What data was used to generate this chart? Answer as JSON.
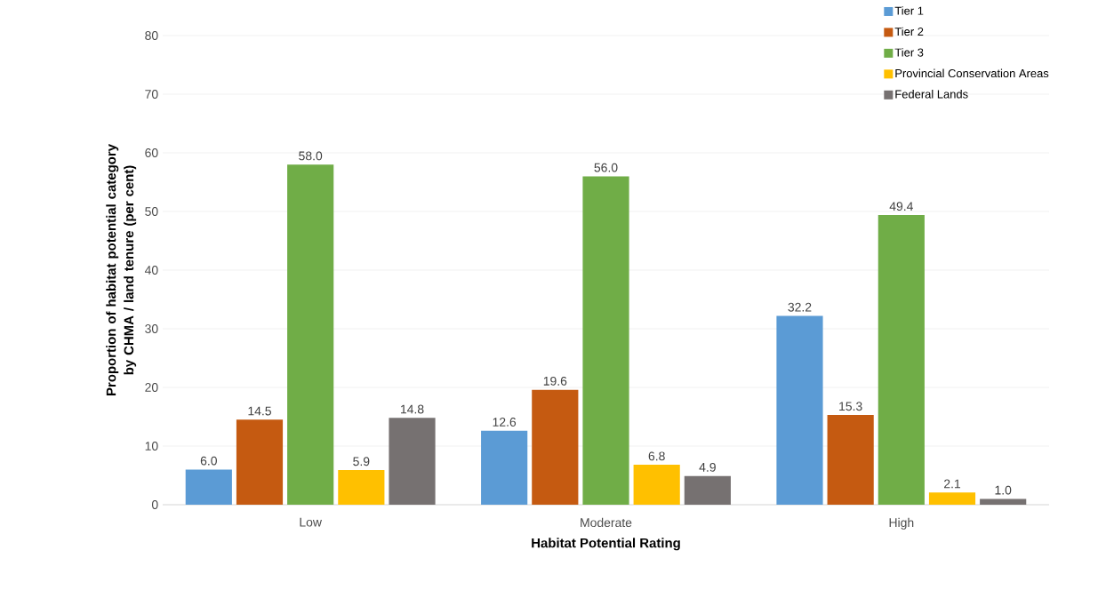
{
  "chart_data": {
    "type": "bar",
    "xlabel": "Habitat Potential Rating",
    "ylabel": "Proportion of habitat potential category by CHMA / land tenure (per cent)",
    "categories": [
      "Low",
      "Moderate",
      "High"
    ],
    "series": [
      {
        "name": "Tier 1",
        "color": "#5b9bd5",
        "values": [
          6.0,
          12.6,
          32.2
        ],
        "value_labels": [
          "6.0",
          "12.6",
          "32.2"
        ]
      },
      {
        "name": "Tier 2",
        "color": "#c55a11",
        "values": [
          14.5,
          19.6,
          15.3
        ],
        "value_labels": [
          "14.5",
          "19.6",
          "15.3"
        ]
      },
      {
        "name": "Tier 3",
        "color": "#70ad47",
        "values": [
          58.0,
          56.0,
          49.4
        ],
        "value_labels": [
          "58.0",
          "56.0",
          "49.4"
        ]
      },
      {
        "name": "Provincial Conservation Areas",
        "color": "#ffc000",
        "values": [
          5.9,
          6.8,
          2.1
        ],
        "value_labels": [
          "5.9",
          "6.8",
          "2.1"
        ]
      },
      {
        "name": "Federal Lands",
        "color": "#767171",
        "values": [
          14.8,
          4.9,
          1.0
        ],
        "value_labels": [
          "14.8",
          "4.9",
          "1.0"
        ]
      }
    ],
    "ylim": [
      0,
      80
    ],
    "yticks": [
      0,
      10,
      20,
      30,
      40,
      50,
      60,
      70,
      80
    ],
    "grid": "y",
    "legend": "top right"
  }
}
